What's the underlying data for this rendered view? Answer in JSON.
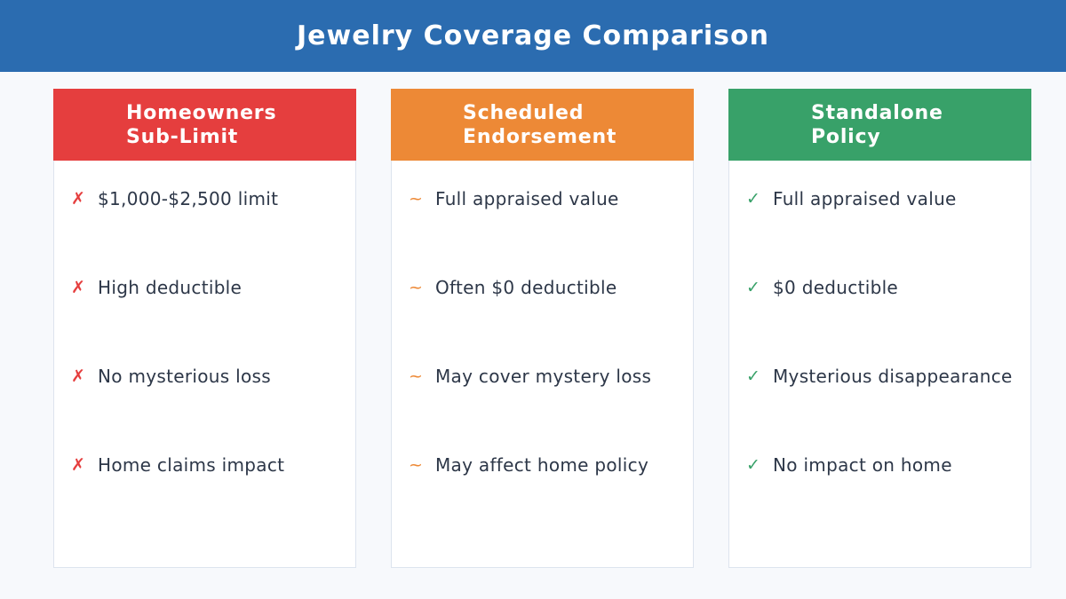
{
  "title": "Jewelry Coverage Comparison",
  "columns": [
    {
      "title_lines": [
        "Homeowners",
        "Sub-Limit"
      ],
      "color": "#e53e3e",
      "mark": "✗",
      "mark_icon": "cross-icon",
      "items": [
        "$1,000-$2,500 limit",
        "High deductible",
        "No mysterious loss",
        "Home claims impact"
      ]
    },
    {
      "title_lines": [
        "Scheduled",
        "Endorsement"
      ],
      "color": "#ed8936",
      "mark": "~",
      "mark_icon": "tilde-icon",
      "items": [
        "Full appraised value",
        "Often $0 deductible",
        "May cover mystery loss",
        "May affect home policy"
      ]
    },
    {
      "title_lines": [
        "Standalone",
        "Policy"
      ],
      "color": "#38a169",
      "mark": "✓",
      "mark_icon": "check-icon",
      "items": [
        "Full appraised value",
        "$0 deductible",
        "Mysterious disappearance",
        "No impact on home"
      ]
    }
  ]
}
